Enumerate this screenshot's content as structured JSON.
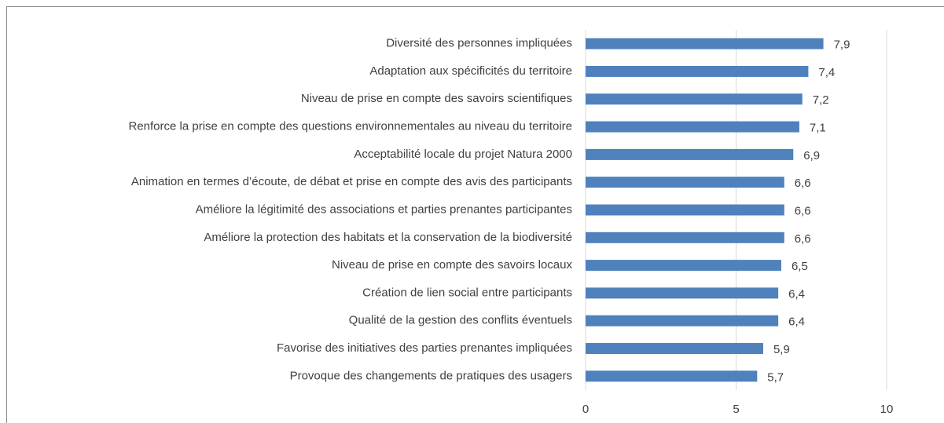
{
  "chart_data": {
    "type": "bar",
    "orientation": "horizontal",
    "categories": [
      "Diversité des personnes impliquées",
      "Adaptation aux spécificités du territoire",
      "Niveau de prise en compte des savoirs scientifiques",
      "Renforce la prise en compte des questions environnementales au niveau du territoire",
      "Acceptabilité locale du projet Natura 2000",
      "Animation en termes d’écoute, de débat et prise en compte des avis des participants",
      "Améliore la légitimité des associations et parties prenantes participantes",
      "Améliore la protection des habitats et la conservation de la biodiversité",
      "Niveau de prise en compte des savoirs locaux",
      "Création de lien social entre participants",
      "Qualité de la gestion des conflits éventuels",
      "Favorise des initiatives des parties prenantes impliquées",
      "Provoque des changements de pratiques des usagers"
    ],
    "values": [
      7.9,
      7.4,
      7.2,
      7.1,
      6.9,
      6.6,
      6.6,
      6.6,
      6.5,
      6.4,
      6.4,
      5.9,
      5.7
    ],
    "value_labels": [
      "7,9",
      "7,4",
      "7,2",
      "7,1",
      "6,9",
      "6,6",
      "6,6",
      "6,6",
      "6,5",
      "6,4",
      "6,4",
      "5,9",
      "5,7"
    ],
    "color": "#4f81bd",
    "xlim": [
      0,
      10
    ],
    "xticks": [
      0,
      5,
      10
    ],
    "grid": true
  }
}
